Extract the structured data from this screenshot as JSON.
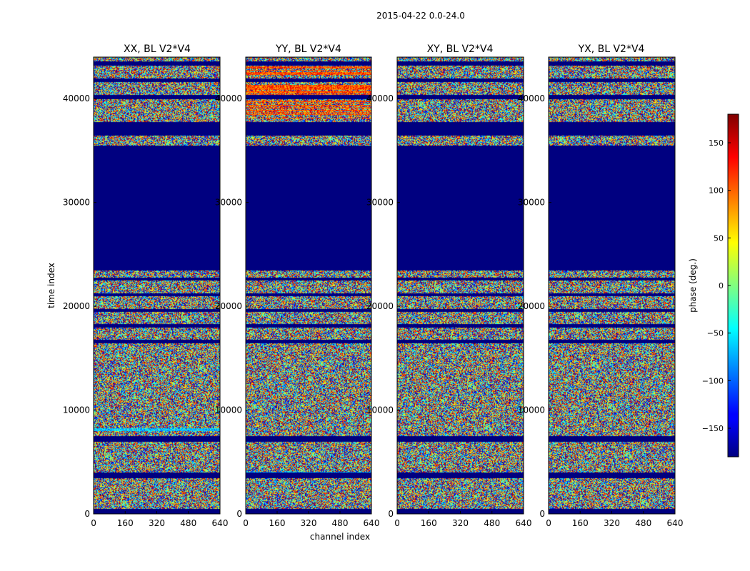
{
  "figure": {
    "suptitle": "2015-04-22 0.0-24.0"
  },
  "chart_data": {
    "type": "heatmap",
    "xlabel": "channel index",
    "ylabel": "time index",
    "xlim": [
      0,
      640
    ],
    "ylim": [
      0,
      44000
    ],
    "x_ticks": [
      "0",
      "160",
      "320",
      "480",
      "640"
    ],
    "y_ticks": [
      "0",
      "10000",
      "20000",
      "30000",
      "40000"
    ],
    "panels": [
      {
        "title": "XX, BL V2*V4",
        "pol": "XX"
      },
      {
        "title": "YY, BL V2*V4",
        "pol": "YY"
      },
      {
        "title": "XY, BL V2*V4",
        "pol": "XY"
      },
      {
        "title": "YX, BL V2*V4",
        "pol": "YX"
      }
    ],
    "flagged_time_range": [
      23500,
      35500
    ],
    "flagged_time_range_2": [
      36500,
      37800
    ],
    "colorbar": {
      "label": "phase (deg.)",
      "range": [
        -180,
        180
      ],
      "ticks": [
        "150",
        "100",
        "50",
        "0",
        "−50",
        "−100",
        "−150"
      ],
      "colormap": "jet"
    }
  }
}
